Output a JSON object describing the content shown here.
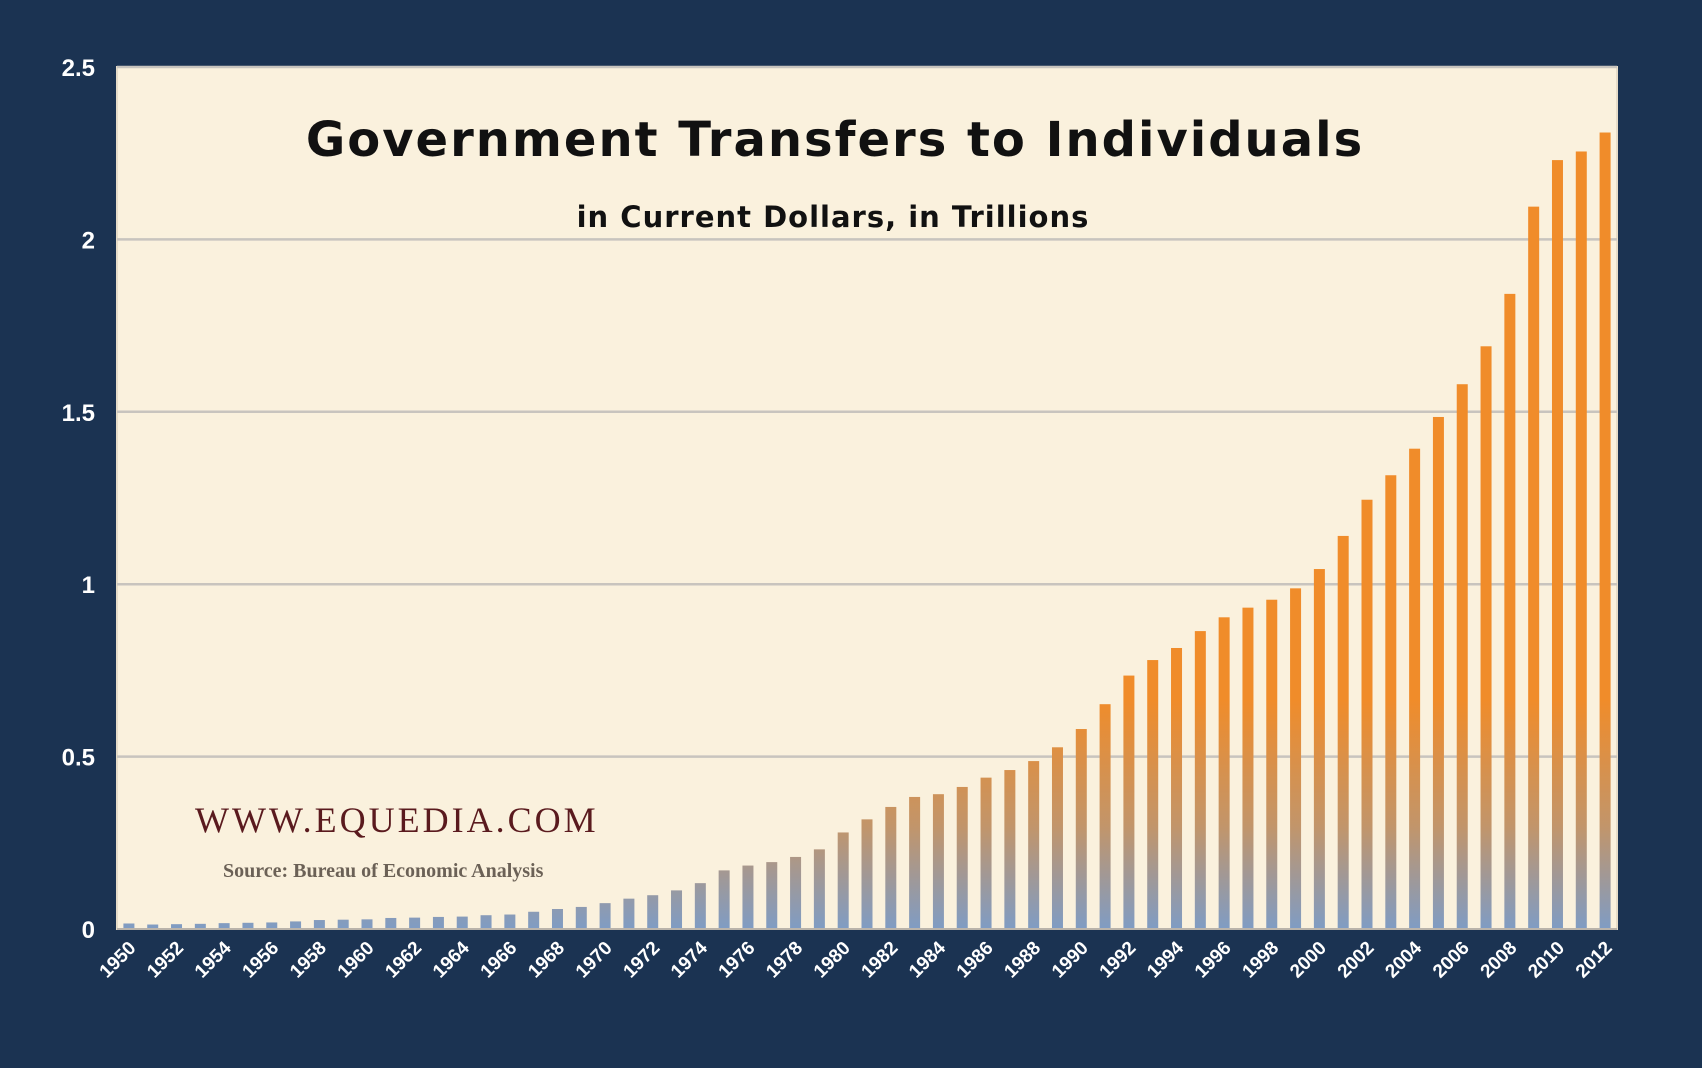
{
  "chart_data": {
    "type": "bar",
    "title": "Government Transfers to Individuals",
    "subtitle": "in Current Dollars, in Trillions",
    "watermark": "WWW.EQUEDIA.COM",
    "source": "Source: Bureau of Economic Analysis",
    "ylim": [
      0,
      2.5
    ],
    "y_ticks": [
      "0",
      "0.5",
      "1",
      "1.5",
      "2",
      "2.5"
    ],
    "y_tick_values": [
      0,
      0.5,
      1,
      1.5,
      2,
      2.5
    ],
    "x_tick_labels": [
      "1950",
      "1952",
      "1954",
      "1956",
      "1958",
      "1960",
      "1962",
      "1964",
      "1966",
      "1968",
      "1970",
      "1972",
      "1974",
      "1976",
      "1978",
      "1980",
      "1982",
      "1984",
      "1986",
      "1988",
      "1990",
      "1992",
      "1994",
      "1996",
      "1998",
      "2000",
      "2002",
      "2004",
      "2006",
      "2008",
      "2010",
      "2012"
    ],
    "categories": [
      "1950",
      "1951",
      "1952",
      "1953",
      "1954",
      "1955",
      "1956",
      "1957",
      "1958",
      "1959",
      "1960",
      "1961",
      "1962",
      "1963",
      "1964",
      "1965",
      "1966",
      "1967",
      "1968",
      "1969",
      "1970",
      "1971",
      "1972",
      "1973",
      "1974",
      "1975",
      "1976",
      "1977",
      "1978",
      "1979",
      "1980",
      "1981",
      "1982",
      "1983",
      "1984",
      "1985",
      "1986",
      "1987",
      "1988",
      "1989",
      "1990",
      "1991",
      "1992",
      "1993",
      "1994",
      "1995",
      "1996",
      "1997",
      "1998",
      "1999",
      "2000",
      "2001",
      "2002",
      "2003",
      "2004",
      "2005",
      "2006",
      "2007",
      "2008",
      "2009",
      "2010",
      "2011",
      "2012"
    ],
    "values": [
      0.016,
      0.013,
      0.014,
      0.015,
      0.017,
      0.018,
      0.019,
      0.022,
      0.026,
      0.027,
      0.028,
      0.032,
      0.033,
      0.035,
      0.036,
      0.04,
      0.042,
      0.05,
      0.058,
      0.064,
      0.075,
      0.088,
      0.098,
      0.112,
      0.133,
      0.17,
      0.184,
      0.194,
      0.209,
      0.231,
      0.28,
      0.318,
      0.354,
      0.383,
      0.391,
      0.412,
      0.439,
      0.461,
      0.487,
      0.527,
      0.58,
      0.652,
      0.735,
      0.78,
      0.815,
      0.864,
      0.904,
      0.932,
      0.955,
      0.988,
      1.044,
      1.14,
      1.245,
      1.316,
      1.393,
      1.485,
      1.58,
      1.69,
      1.842,
      2.095,
      2.23,
      2.255,
      2.31
    ],
    "grid": true,
    "colors": {
      "bar": "#f08c2a",
      "bar_base": "#7f9cc4",
      "plot_bg": "#faf1dd",
      "page_bg": "#1b3352",
      "grid": "#c8c4be"
    }
  }
}
